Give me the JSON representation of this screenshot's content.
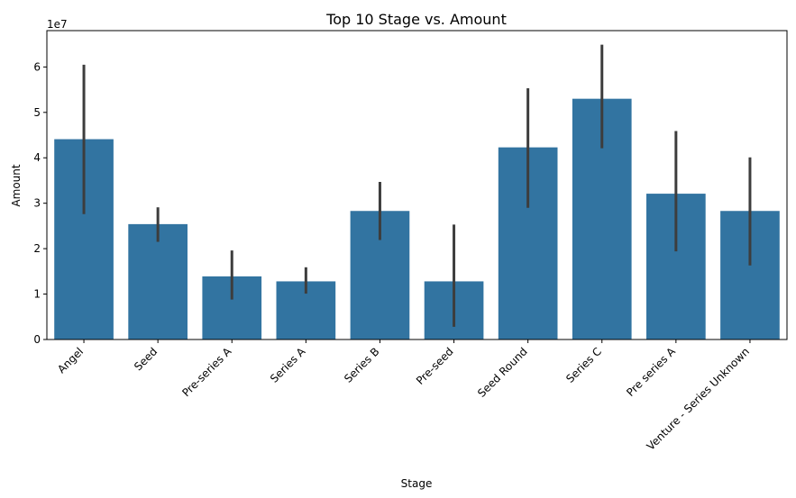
{
  "chart_data": {
    "type": "bar",
    "title": "Top 10 Stage vs. Amount",
    "xlabel": "Stage",
    "ylabel": "Amount",
    "y_offset_label": "1e7",
    "ylim": [
      0,
      6.8
    ],
    "y_ticks": [
      0,
      1,
      2,
      3,
      4,
      5,
      6
    ],
    "grid": false,
    "bar_color": "#3274a1",
    "errbar_color": "#3d3d3d",
    "categories": [
      "Angel",
      "Seed",
      "Pre-series A",
      "Series A",
      "Series B",
      "Pre-seed",
      "Seed Round",
      "Series C",
      "Pre series A",
      "Venture - Series Unknown"
    ],
    "values": [
      4.41,
      2.54,
      1.39,
      1.28,
      2.83,
      1.28,
      4.23,
      5.3,
      3.21,
      2.83
    ],
    "ci_low": [
      2.76,
      2.15,
      0.88,
      1.01,
      2.19,
      0.28,
      2.9,
      4.21,
      1.94,
      1.63
    ],
    "ci_high": [
      6.05,
      2.91,
      1.96,
      1.59,
      3.47,
      2.53,
      5.53,
      6.49,
      4.59,
      4.01
    ]
  }
}
